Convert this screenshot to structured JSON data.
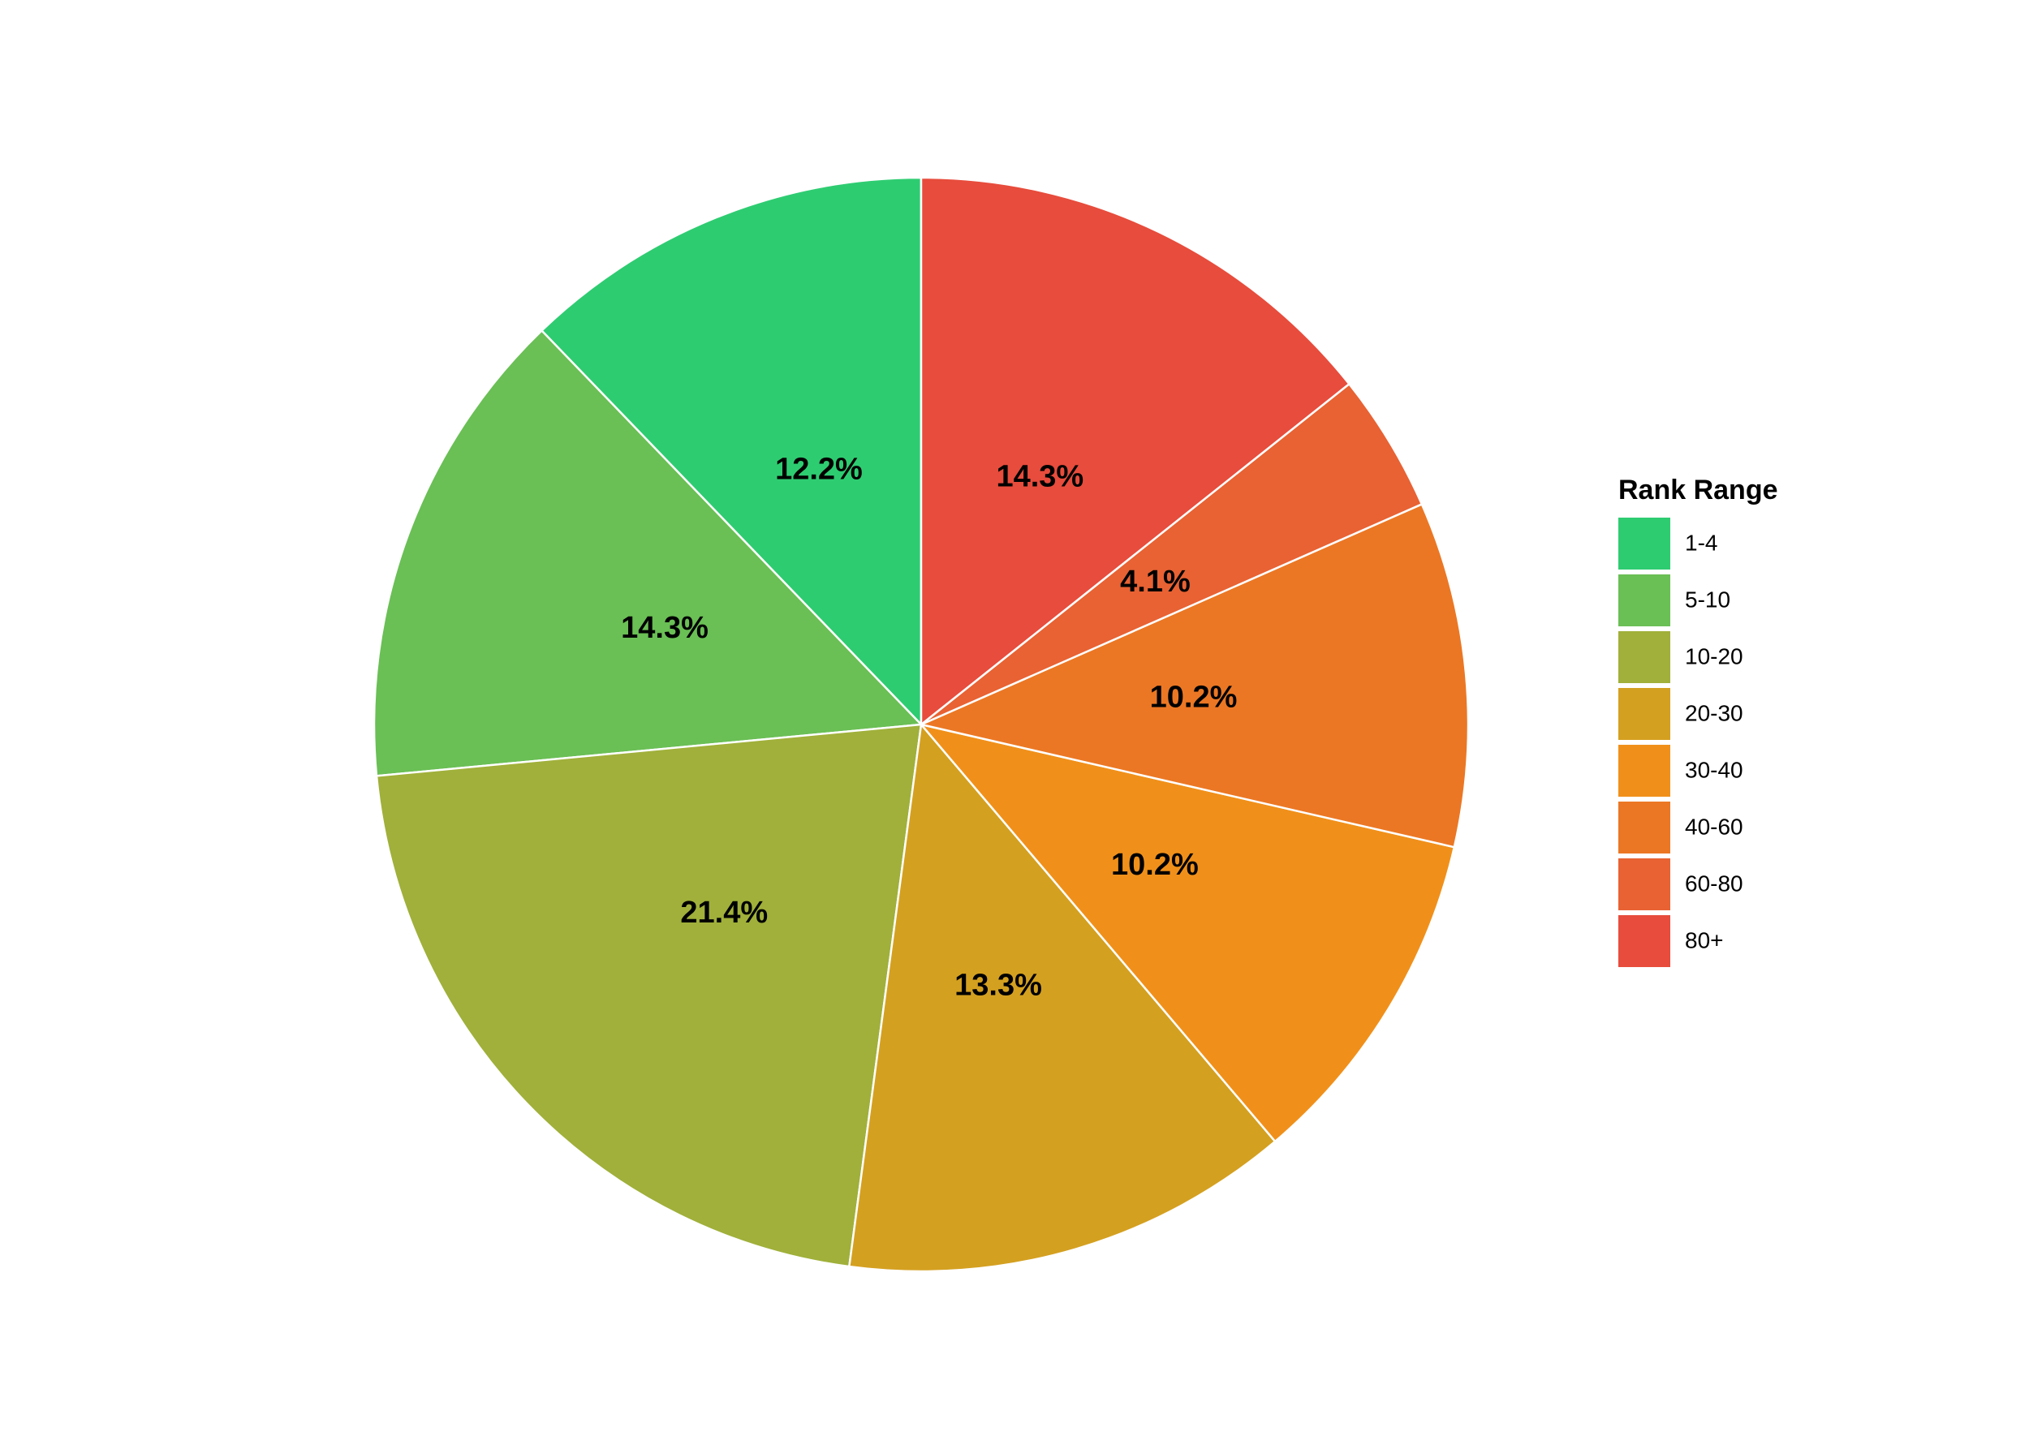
{
  "chart_data": {
    "type": "pie",
    "legend_title": "Rank Range",
    "categories": [
      "1-4",
      "5-10",
      "10-20",
      "20-30",
      "30-40",
      "40-60",
      "60-80",
      "80+"
    ],
    "values": [
      12.2,
      14.3,
      21.4,
      13.3,
      10.2,
      10.2,
      4.1,
      14.3
    ],
    "value_labels": [
      "12.2%",
      "14.3%",
      "21.4%",
      "13.3%",
      "10.2%",
      "10.2%",
      "4.1%",
      "14.3%"
    ],
    "colors": [
      "#2ecc71",
      "#6abf55",
      "#a0b03a",
      "#d4a020",
      "#f0901a",
      "#eb7724",
      "#e86233",
      "#e74c3c"
    ],
    "legend": "right"
  }
}
